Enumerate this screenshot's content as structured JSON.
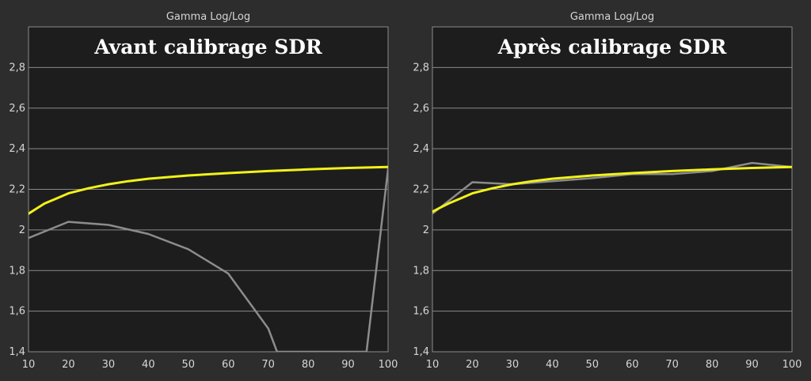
{
  "colors": {
    "background": "#2d2d2d",
    "plot_background": "#1d1d1d",
    "grid": "#8a8a8a",
    "measured": "#8c8c8c",
    "target": "#f2f21a",
    "text": "#d6d6d6",
    "title": "#ffffff"
  },
  "chart_data": [
    {
      "type": "line",
      "header": "Gamma Log/Log",
      "title": "Avant calibrage SDR",
      "xlim": [
        10,
        100
      ],
      "ylim": [
        1.4,
        3.0
      ],
      "grid": true,
      "x_ticks": [
        "10",
        "20",
        "30",
        "40",
        "50",
        "60",
        "70",
        "80",
        "90",
        "100"
      ],
      "y_ticks": [
        "1,4",
        "1,6",
        "1,8",
        "2",
        "2,2",
        "2,4",
        "2,6",
        "2,8"
      ],
      "y_tick_values": [
        1.4,
        1.6,
        1.8,
        2.0,
        2.2,
        2.4,
        2.6,
        2.8
      ],
      "series": [
        {
          "role": "target",
          "color": "#f2f21a",
          "x": [
            10,
            12,
            14,
            17,
            20,
            25,
            30,
            35,
            40,
            50,
            60,
            70,
            80,
            90,
            100
          ],
          "y": [
            2.08,
            2.105,
            2.13,
            2.155,
            2.18,
            2.205,
            2.225,
            2.24,
            2.252,
            2.268,
            2.28,
            2.29,
            2.298,
            2.305,
            2.31
          ]
        },
        {
          "role": "measured",
          "color": "#8c8c8c",
          "x": [
            10,
            20,
            30,
            40,
            50,
            60,
            70,
            72.2,
            94.6,
            100
          ],
          "y": [
            1.96,
            2.04,
            2.025,
            1.98,
            1.905,
            1.785,
            1.515,
            1.4,
            1.4,
            2.3
          ]
        }
      ]
    },
    {
      "type": "line",
      "header": "Gamma Log/Log",
      "title": "Après calibrage SDR",
      "xlim": [
        10,
        100
      ],
      "ylim": [
        1.4,
        3.0
      ],
      "grid": true,
      "x_ticks": [
        "10",
        "20",
        "30",
        "40",
        "50",
        "60",
        "70",
        "80",
        "90",
        "100"
      ],
      "y_ticks": [
        "1,4",
        "1,6",
        "1,8",
        "2",
        "2,2",
        "2,4",
        "2,6",
        "2,8"
      ],
      "y_tick_values": [
        1.4,
        1.6,
        1.8,
        2.0,
        2.2,
        2.4,
        2.6,
        2.8
      ],
      "series": [
        {
          "role": "target",
          "color": "#f2f21a",
          "x": [
            10,
            12,
            14,
            17,
            20,
            25,
            30,
            35,
            40,
            50,
            60,
            70,
            80,
            90,
            100
          ],
          "y": [
            2.09,
            2.11,
            2.13,
            2.155,
            2.18,
            2.205,
            2.225,
            2.24,
            2.252,
            2.268,
            2.28,
            2.29,
            2.298,
            2.305,
            2.31
          ]
        },
        {
          "role": "measured",
          "color": "#8c8c8c",
          "x": [
            10,
            20,
            30,
            40,
            50,
            60,
            70,
            80,
            90,
            100
          ],
          "y": [
            2.08,
            2.235,
            2.225,
            2.24,
            2.255,
            2.275,
            2.275,
            2.29,
            2.33,
            2.31
          ]
        }
      ]
    }
  ]
}
